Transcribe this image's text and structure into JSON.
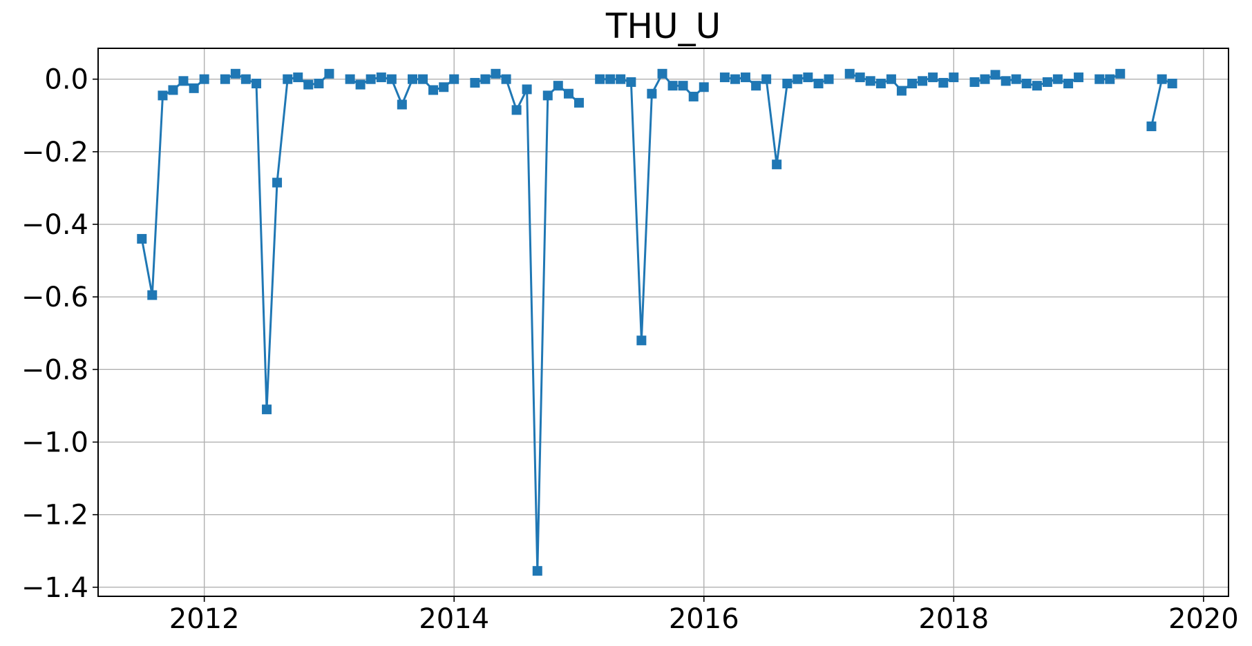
{
  "chart_data": {
    "type": "line",
    "title": "THU_U",
    "xlabel": "",
    "ylabel": "",
    "xlim": [
      2011.15,
      2020.2
    ],
    "ylim": [
      -1.425,
      0.085
    ],
    "x_ticks": [
      2012,
      2014,
      2016,
      2018,
      2020
    ],
    "x_tick_labels": [
      "2012",
      "2014",
      "2016",
      "2018",
      "2020"
    ],
    "y_ticks": [
      0.0,
      -0.2,
      -0.4,
      -0.6,
      -0.8,
      -1.0,
      -1.2,
      -1.4
    ],
    "y_tick_labels": [
      "0.0",
      "−0.2",
      "−0.4",
      "−0.6",
      "−0.8",
      "−1.0",
      "−1.2",
      "−1.4"
    ],
    "grid": true,
    "marker": "square",
    "series_color": "#1f77b4",
    "series": [
      {
        "name": "",
        "segments": [
          [
            [
              2011.5,
              -0.44
            ],
            [
              2011.583,
              -0.595
            ],
            [
              2011.667,
              -0.045
            ],
            [
              2011.75,
              -0.03
            ],
            [
              2011.833,
              -0.005
            ],
            [
              2011.917,
              -0.025
            ],
            [
              2012.0,
              0.0
            ]
          ],
          [
            [
              2012.167,
              0.0
            ],
            [
              2012.25,
              0.015
            ],
            [
              2012.333,
              0.0
            ],
            [
              2012.417,
              -0.012
            ],
            [
              2012.5,
              -0.91
            ],
            [
              2012.583,
              -0.285
            ],
            [
              2012.667,
              0.0
            ],
            [
              2012.75,
              0.005
            ],
            [
              2012.833,
              -0.015
            ],
            [
              2012.917,
              -0.012
            ],
            [
              2013.0,
              0.015
            ]
          ],
          [
            [
              2013.167,
              0.0
            ],
            [
              2013.25,
              -0.015
            ],
            [
              2013.333,
              0.0
            ],
            [
              2013.417,
              0.005
            ],
            [
              2013.5,
              0.0
            ],
            [
              2013.583,
              -0.07
            ],
            [
              2013.667,
              0.0
            ],
            [
              2013.75,
              0.0
            ],
            [
              2013.833,
              -0.03
            ],
            [
              2013.917,
              -0.022
            ],
            [
              2014.0,
              0.0
            ]
          ],
          [
            [
              2014.167,
              -0.01
            ],
            [
              2014.25,
              0.0
            ],
            [
              2014.333,
              0.015
            ],
            [
              2014.417,
              0.0
            ],
            [
              2014.5,
              -0.085
            ],
            [
              2014.583,
              -0.028
            ],
            [
              2014.667,
              -1.355
            ],
            [
              2014.75,
              -0.045
            ],
            [
              2014.833,
              -0.018
            ],
            [
              2014.917,
              -0.04
            ],
            [
              2015.0,
              -0.065
            ]
          ],
          [
            [
              2015.167,
              0.0
            ],
            [
              2015.25,
              0.0
            ],
            [
              2015.333,
              0.0
            ],
            [
              2015.417,
              -0.008
            ],
            [
              2015.5,
              -0.72
            ],
            [
              2015.583,
              -0.04
            ],
            [
              2015.667,
              0.015
            ],
            [
              2015.75,
              -0.018
            ],
            [
              2015.833,
              -0.018
            ],
            [
              2015.917,
              -0.048
            ],
            [
              2016.0,
              -0.022
            ]
          ],
          [
            [
              2016.167,
              0.005
            ],
            [
              2016.25,
              0.0
            ],
            [
              2016.333,
              0.005
            ],
            [
              2016.417,
              -0.018
            ],
            [
              2016.5,
              0.0
            ],
            [
              2016.583,
              -0.235
            ],
            [
              2016.667,
              -0.012
            ],
            [
              2016.75,
              0.0
            ],
            [
              2016.833,
              0.005
            ],
            [
              2016.917,
              -0.012
            ],
            [
              2017.0,
              0.0
            ]
          ],
          [
            [
              2017.167,
              0.015
            ],
            [
              2017.25,
              0.005
            ],
            [
              2017.333,
              -0.005
            ],
            [
              2017.417,
              -0.012
            ],
            [
              2017.5,
              0.0
            ],
            [
              2017.583,
              -0.032
            ],
            [
              2017.667,
              -0.012
            ],
            [
              2017.75,
              -0.005
            ],
            [
              2017.833,
              0.005
            ],
            [
              2017.917,
              -0.01
            ],
            [
              2018.0,
              0.005
            ]
          ],
          [
            [
              2018.167,
              -0.008
            ],
            [
              2018.25,
              0.0
            ],
            [
              2018.333,
              0.012
            ],
            [
              2018.417,
              -0.005
            ],
            [
              2018.5,
              0.0
            ],
            [
              2018.583,
              -0.012
            ],
            [
              2018.667,
              -0.018
            ],
            [
              2018.75,
              -0.008
            ],
            [
              2018.833,
              0.0
            ],
            [
              2018.917,
              -0.012
            ],
            [
              2019.0,
              0.005
            ]
          ],
          [
            [
              2019.167,
              0.0
            ],
            [
              2019.25,
              0.0
            ],
            [
              2019.333,
              0.015
            ]
          ],
          [
            [
              2019.583,
              -0.13
            ],
            [
              2019.667,
              0.0
            ],
            [
              2019.75,
              -0.012
            ]
          ]
        ]
      }
    ]
  }
}
